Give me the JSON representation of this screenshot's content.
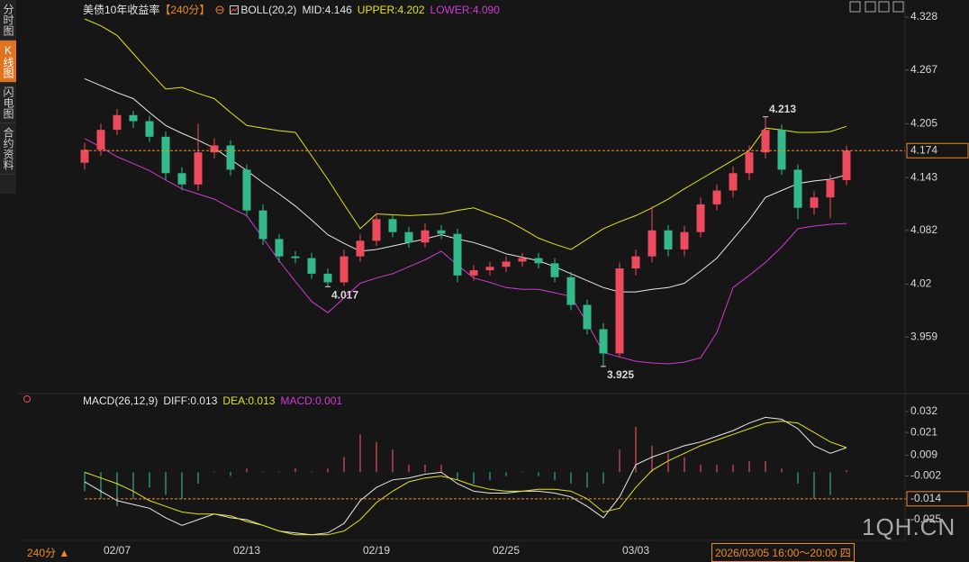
{
  "sidebar": {
    "items": [
      "分时图",
      "K线图",
      "闪电图",
      "合约资料"
    ],
    "active": 1
  },
  "chart_data": [
    {
      "type": "candlestick",
      "title": "美债10年收益率",
      "period": "【240分】",
      "indicator": "BOLL(20,2)",
      "categories": [
        null,
        null,
        "02/07",
        null,
        null,
        null,
        null,
        null,
        null,
        null,
        "02/13",
        null,
        null,
        null,
        null,
        null,
        null,
        null,
        "02/19",
        null,
        null,
        null,
        null,
        null,
        null,
        null,
        "02/25",
        null,
        null,
        null,
        null,
        null,
        null,
        null,
        "03/03",
        null,
        null,
        null,
        null,
        null,
        null,
        null,
        null,
        null,
        null,
        null,
        null,
        null
      ],
      "open": [
        4.16,
        4.175,
        4.198,
        4.215,
        4.208,
        4.19,
        4.148,
        4.135,
        4.172,
        4.18,
        4.152,
        4.105,
        4.072,
        4.052,
        4.05,
        4.032,
        4.022,
        4.052,
        4.07,
        4.095,
        4.08,
        4.068,
        4.082,
        4.078,
        4.03,
        4.036,
        4.04,
        4.046,
        4.05,
        4.044,
        4.028,
        3.996,
        3.968,
        3.94,
        4.038,
        4.052,
        4.082,
        4.06,
        4.08,
        4.112,
        4.128,
        4.148,
        4.172,
        4.198,
        4.152,
        4.108,
        4.12,
        4.14
      ],
      "high": [
        4.183,
        4.205,
        4.222,
        4.22,
        4.214,
        4.196,
        4.155,
        4.205,
        4.188,
        4.186,
        4.158,
        4.112,
        4.078,
        4.058,
        4.056,
        4.038,
        4.06,
        4.078,
        4.102,
        4.1,
        4.086,
        4.09,
        4.088,
        4.084,
        4.042,
        4.046,
        4.052,
        4.056,
        4.056,
        4.05,
        4.034,
        4.002,
        3.975,
        4.045,
        4.06,
        4.11,
        4.088,
        4.087,
        4.12,
        4.135,
        4.156,
        4.18,
        4.213,
        4.204,
        4.158,
        4.127,
        4.146,
        4.18
      ],
      "low": [
        4.152,
        4.168,
        4.192,
        4.2,
        4.184,
        4.14,
        4.128,
        4.128,
        4.165,
        4.145,
        4.098,
        4.065,
        4.045,
        4.044,
        4.026,
        4.017,
        4.018,
        4.046,
        4.064,
        4.074,
        4.062,
        4.062,
        4.072,
        4.022,
        4.024,
        4.03,
        4.034,
        4.04,
        4.038,
        4.022,
        3.99,
        3.962,
        3.925,
        3.935,
        4.03,
        4.045,
        4.052,
        4.052,
        4.074,
        4.105,
        4.12,
        4.14,
        4.165,
        4.146,
        4.095,
        4.1,
        4.096,
        4.134
      ],
      "close": [
        4.175,
        4.198,
        4.215,
        4.208,
        4.19,
        4.148,
        4.135,
        4.172,
        4.18,
        4.152,
        4.105,
        4.072,
        4.052,
        4.05,
        4.032,
        4.022,
        4.052,
        4.07,
        4.095,
        4.08,
        4.068,
        4.082,
        4.078,
        4.03,
        4.036,
        4.04,
        4.046,
        4.05,
        4.044,
        4.028,
        3.996,
        3.968,
        3.94,
        4.038,
        4.052,
        4.082,
        4.06,
        4.08,
        4.112,
        4.128,
        4.148,
        4.172,
        4.198,
        4.152,
        4.108,
        4.12,
        4.14,
        4.174
      ],
      "up_color": "#ee4a5e",
      "down_color": "#33b98a",
      "series": [
        {
          "label": "MID:4.146",
          "color": "#e8e8e8",
          "values": [
            4.257,
            4.249,
            4.241,
            4.234,
            4.218,
            4.203,
            4.194,
            4.186,
            4.177,
            4.164,
            4.151,
            4.137,
            4.124,
            4.11,
            4.094,
            4.077,
            4.067,
            4.058,
            4.06,
            4.064,
            4.068,
            4.072,
            4.077,
            4.072,
            4.068,
            4.062,
            4.055,
            4.051,
            4.047,
            4.04,
            4.032,
            4.024,
            4.016,
            4.011,
            4.011,
            4.014,
            4.016,
            4.021,
            4.035,
            4.05,
            4.072,
            4.094,
            4.12,
            4.128,
            4.136,
            4.139,
            4.141,
            4.146
          ]
        },
        {
          "label": "UPPER:4.202",
          "color": "#e3e31c",
          "values": [
            4.326,
            4.318,
            4.307,
            4.286,
            4.265,
            4.245,
            4.247,
            4.24,
            4.234,
            4.218,
            4.203,
            4.2,
            4.197,
            4.195,
            4.168,
            4.141,
            4.112,
            4.084,
            4.101,
            4.1,
            4.099,
            4.1,
            4.101,
            4.105,
            4.108,
            4.101,
            4.094,
            4.084,
            4.073,
            4.066,
            4.06,
            4.072,
            4.084,
            4.092,
            4.099,
            4.108,
            4.118,
            4.13,
            4.141,
            4.152,
            4.163,
            4.174,
            4.2,
            4.198,
            4.195,
            4.195,
            4.196,
            4.202
          ]
        },
        {
          "label": "LOWER:4.090",
          "color": "#d23ad2",
          "values": [
            4.188,
            4.178,
            4.167,
            4.159,
            4.151,
            4.14,
            4.13,
            4.124,
            4.118,
            4.108,
            4.099,
            4.073,
            4.047,
            4.023,
            4.0,
            3.987,
            4.004,
            4.021,
            4.027,
            4.032,
            4.04,
            4.048,
            4.058,
            4.042,
            4.027,
            4.022,
            4.016,
            4.014,
            4.014,
            4.01,
            4.006,
            3.975,
            3.941,
            3.936,
            3.931,
            3.929,
            3.928,
            3.93,
            3.935,
            3.964,
            4.016,
            4.03,
            4.045,
            4.063,
            4.084,
            4.087,
            4.089,
            4.09
          ]
        }
      ],
      "annotations": [
        {
          "value": 4.213,
          "label": "4.213",
          "color": "#ee4a5e"
        },
        {
          "value": 4.017,
          "label": "4.017",
          "color": "#33b98a"
        },
        {
          "value": 3.925,
          "label": "3.925",
          "color": "#33b98a"
        }
      ],
      "price_marker": {
        "value": 4.174,
        "label": "4.174",
        "color": "#f08a24"
      },
      "ylim": [
        3.902,
        4.34
      ],
      "yticks": [
        4.328,
        4.267,
        4.205,
        4.143,
        4.082,
        4.02,
        3.959
      ]
    },
    {
      "type": "macd",
      "title": "MACD(26,12,9)",
      "series": [
        {
          "label": "DIFF:0.013",
          "color": "#e8e8e8",
          "values": [
            -0.005,
            -0.01,
            -0.015,
            -0.017,
            -0.019,
            -0.024,
            -0.028,
            -0.025,
            -0.022,
            -0.024,
            -0.025,
            -0.028,
            -0.031,
            -0.032,
            -0.033,
            -0.032,
            -0.027,
            -0.015,
            -0.008,
            -0.004,
            -0.003,
            -0.001,
            0,
            -0.006,
            -0.01,
            -0.011,
            -0.011,
            -0.01,
            -0.01,
            -0.011,
            -0.013,
            -0.018,
            -0.024,
            -0.013,
            0.004,
            0.008,
            0.011,
            0.014,
            0.016,
            0.019,
            0.022,
            0.026,
            0.029,
            0.028,
            0.023,
            0.014,
            0.01,
            0.013
          ]
        },
        {
          "label": "DEA:0.013",
          "color": "#e3e31c",
          "values": [
            0,
            -0.003,
            -0.006,
            -0.01,
            -0.015,
            -0.018,
            -0.021,
            -0.022,
            -0.022,
            -0.023,
            -0.026,
            -0.028,
            -0.031,
            -0.033,
            -0.033,
            -0.033,
            -0.031,
            -0.025,
            -0.016,
            -0.01,
            -0.005,
            -0.003,
            -0.002,
            -0.004,
            -0.007,
            -0.009,
            -0.01,
            -0.01,
            -0.009,
            -0.009,
            -0.01,
            -0.014,
            -0.021,
            -0.019,
            -0.008,
            0.001,
            0.006,
            0.01,
            0.014,
            0.017,
            0.02,
            0.023,
            0.026,
            0.027,
            0.026,
            0.021,
            0.016,
            0.013
          ]
        }
      ],
      "histogram": {
        "label": "MACD:0.001",
        "color": "#d23ad2",
        "up_color": "#e0505e",
        "down_color": "#3aa88a",
        "values": [
          -0.01,
          -0.014,
          -0.018,
          -0.014,
          -0.008,
          -0.012,
          -0.014,
          -0.006,
          0,
          -0.002,
          0.002,
          0,
          0,
          0.002,
          0,
          0.002,
          0.008,
          0.02,
          0.016,
          0.012,
          0.004,
          0.004,
          0.004,
          -0.004,
          -0.006,
          -0.004,
          -0.002,
          0,
          -0.002,
          -0.004,
          -0.006,
          -0.008,
          -0.006,
          0.012,
          0.024,
          0.014,
          0.01,
          0.008,
          0.004,
          0.004,
          0.004,
          0.006,
          0.006,
          0.002,
          -0.006,
          -0.014,
          -0.012,
          0.001
        ]
      },
      "value_marker": {
        "value": -0.014,
        "label": "-0.014",
        "color": "#f08a24"
      },
      "ylim": [
        -0.035,
        0.0363
      ],
      "yticks": [
        0.032,
        0.021,
        0.009,
        -0.002,
        -0.014,
        -0.025
      ]
    }
  ],
  "footer": {
    "period": "240分 ▲",
    "cursor_time": "2026/03/05 16:00～20:00 四",
    "watermark": "1QH.CN"
  }
}
